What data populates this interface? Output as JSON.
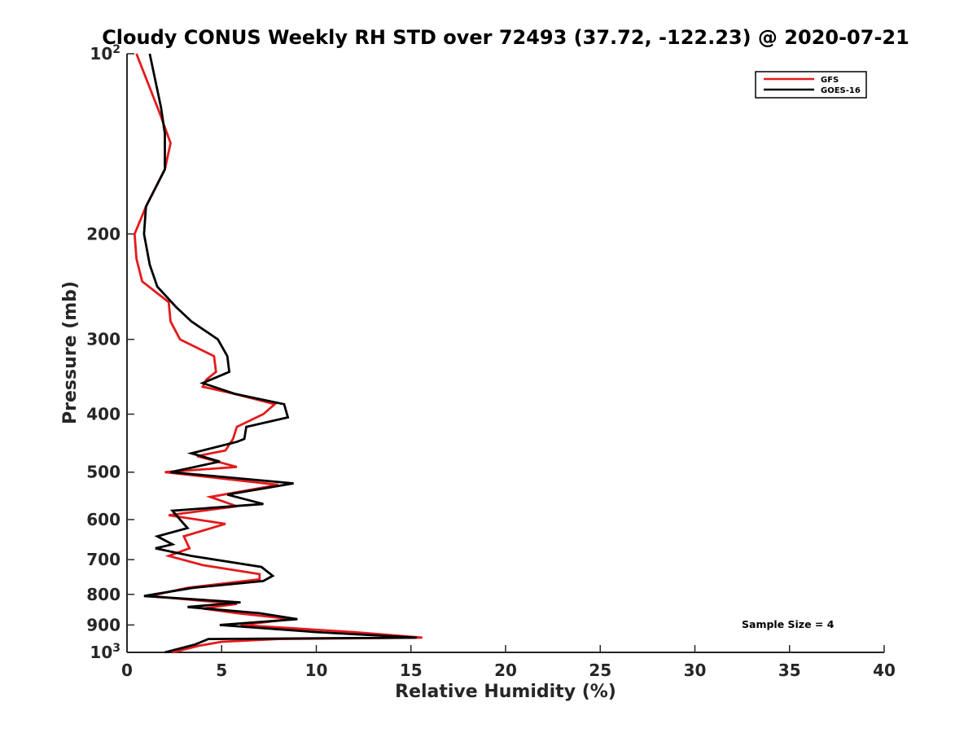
{
  "chart_data": {
    "type": "line",
    "title": "Cloudy CONUS Weekly RH STD over 72493 (37.72, -122.23) @ 2020-07-21",
    "xlabel": "Relative Humidity (%)",
    "ylabel": "Pressure (mb)",
    "xlim": [
      0,
      40
    ],
    "ylim": [
      100,
      1000
    ],
    "yscale": "log",
    "y_reversed": true,
    "x_ticks": [
      "0",
      "5",
      "10",
      "15",
      "20",
      "25",
      "30",
      "35",
      "40"
    ],
    "y_ticks": [
      {
        "value": 100,
        "base": "10",
        "exp": "2"
      },
      {
        "value": 200,
        "label": "200"
      },
      {
        "value": 300,
        "label": "300"
      },
      {
        "value": 400,
        "label": "400"
      },
      {
        "value": 500,
        "label": "500"
      },
      {
        "value": 600,
        "label": "600"
      },
      {
        "value": 700,
        "label": "700"
      },
      {
        "value": 800,
        "label": "800"
      },
      {
        "value": 900,
        "label": "900"
      },
      {
        "value": 1000,
        "base": "10",
        "exp": "3"
      }
    ],
    "grid": false,
    "legend_position": "top-right",
    "annotation": "Sample Size = 4",
    "series": [
      {
        "name": "GFS",
        "color": "#e41a1c",
        "points": [
          [
            0.5,
            100
          ],
          [
            1.7,
            125
          ],
          [
            2.3,
            141
          ],
          [
            2.0,
            156
          ],
          [
            1.0,
            180
          ],
          [
            0.4,
            200
          ],
          [
            0.5,
            220
          ],
          [
            0.8,
            240
          ],
          [
            2.2,
            260
          ],
          [
            2.3,
            280
          ],
          [
            2.8,
            300
          ],
          [
            4.6,
            320
          ],
          [
            4.7,
            340
          ],
          [
            4.2,
            350
          ],
          [
            4.0,
            360
          ],
          [
            5.7,
            370
          ],
          [
            7.8,
            385
          ],
          [
            7.2,
            400
          ],
          [
            5.8,
            420
          ],
          [
            5.6,
            440
          ],
          [
            5.2,
            460
          ],
          [
            3.7,
            470
          ],
          [
            5.8,
            490
          ],
          [
            2.0,
            500
          ],
          [
            8.0,
            525
          ],
          [
            4.4,
            550
          ],
          [
            5.8,
            570
          ],
          [
            2.2,
            590
          ],
          [
            5.2,
            610
          ],
          [
            3.0,
            640
          ],
          [
            3.3,
            670
          ],
          [
            2.2,
            690
          ],
          [
            4.0,
            715
          ],
          [
            7.0,
            740
          ],
          [
            7.0,
            755
          ],
          [
            3.2,
            780
          ],
          [
            1.2,
            805
          ],
          [
            5.8,
            830
          ],
          [
            4.0,
            845
          ],
          [
            5.8,
            860
          ],
          [
            8.7,
            880
          ],
          [
            6.0,
            900
          ],
          [
            12.0,
            925
          ],
          [
            15.6,
            945
          ],
          [
            8.0,
            950
          ],
          [
            5.0,
            960
          ],
          [
            3.8,
            975
          ],
          [
            2.4,
            1000
          ]
        ]
      },
      {
        "name": "GOES-16",
        "color": "#000000",
        "points": [
          [
            1.2,
            100
          ],
          [
            1.8,
            123
          ],
          [
            2.0,
            136
          ],
          [
            2.0,
            156
          ],
          [
            1.0,
            180
          ],
          [
            0.9,
            200
          ],
          [
            1.2,
            225
          ],
          [
            1.6,
            245
          ],
          [
            2.6,
            265
          ],
          [
            3.4,
            280
          ],
          [
            4.8,
            300
          ],
          [
            5.3,
            320
          ],
          [
            5.4,
            340
          ],
          [
            4.0,
            355
          ],
          [
            5.7,
            370
          ],
          [
            8.3,
            385
          ],
          [
            8.5,
            405
          ],
          [
            6.3,
            420
          ],
          [
            6.2,
            440
          ],
          [
            5.8,
            445
          ],
          [
            3.4,
            465
          ],
          [
            4.9,
            480
          ],
          [
            2.3,
            500
          ],
          [
            8.8,
            522
          ],
          [
            5.3,
            545
          ],
          [
            7.2,
            565
          ],
          [
            2.4,
            580
          ],
          [
            2.8,
            600
          ],
          [
            3.2,
            620
          ],
          [
            1.6,
            640
          ],
          [
            2.4,
            660
          ],
          [
            1.5,
            670
          ],
          [
            3.4,
            690
          ],
          [
            7.1,
            720
          ],
          [
            7.7,
            745
          ],
          [
            7.2,
            760
          ],
          [
            3.5,
            780
          ],
          [
            0.9,
            805
          ],
          [
            6.0,
            825
          ],
          [
            3.2,
            840
          ],
          [
            7.0,
            860
          ],
          [
            9.0,
            880
          ],
          [
            4.9,
            900
          ],
          [
            10.0,
            925
          ],
          [
            15.3,
            945
          ],
          [
            4.3,
            950
          ],
          [
            3.6,
            970
          ],
          [
            2.0,
            1000
          ]
        ]
      }
    ]
  }
}
